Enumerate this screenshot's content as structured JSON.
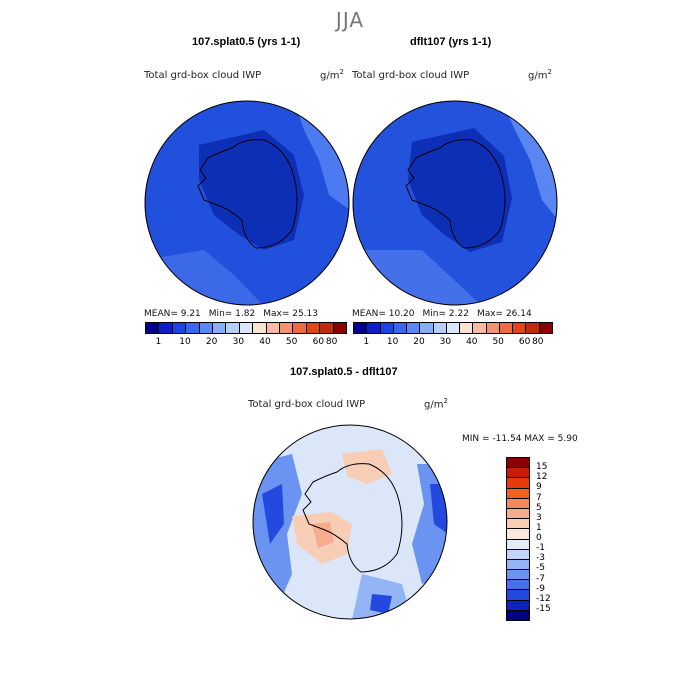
{
  "season": "JJA",
  "panel1": {
    "title": "107.splat0.5 (yrs 1-1)",
    "var_label": "Total grd-box cloud IWP",
    "unit": "g/m",
    "unit_exp": "2",
    "mean": "MEAN=   9.21",
    "min": "Min=   1.82",
    "max": "Max=  25.13"
  },
  "panel2": {
    "title": "dflt107 (yrs 1-1)",
    "var_label": "Total grd-box cloud IWP",
    "unit": "g/m",
    "unit_exp": "2",
    "mean": "MEAN=  10.20",
    "min": "Min=   2.22",
    "max": "Max=  26.14"
  },
  "panel3": {
    "title": "107.splat0.5 - dflt107",
    "var_label": "Total grd-box cloud IWP",
    "unit": "g/m",
    "unit_exp": "2",
    "minmax": "MIN = -11.54  MAX =    5.90"
  },
  "colorbar_top": {
    "colors": [
      "#00008b",
      "#0a1fc8",
      "#1a46e6",
      "#3a67f0",
      "#5a88f5",
      "#86aef7",
      "#b5cff8",
      "#dbe6f8",
      "#fbe3d2",
      "#f7bca0",
      "#f39370",
      "#ee6a40",
      "#e44516",
      "#c12a0d",
      "#8b0000"
    ],
    "ticks": [
      "1",
      "10",
      "20",
      "30",
      "40",
      "50",
      "60",
      "80"
    ]
  },
  "colorbar_diff": {
    "colors": [
      "#8b0000",
      "#c71c06",
      "#e83b0b",
      "#f4601e",
      "#f6885a",
      "#f7ac8e",
      "#f8cdb5",
      "#fbe9de",
      "#e4ecfa",
      "#c1d5f8",
      "#93b4f6",
      "#6b93f2",
      "#4670ea",
      "#2349df",
      "#0d22c0",
      "#000080"
    ],
    "ticks": [
      "15",
      "12",
      "9",
      "7",
      "5",
      "3",
      "1",
      "0",
      "-1",
      "-3",
      "-5",
      "-7",
      "-9",
      "-12",
      "-15"
    ]
  },
  "maps": {
    "map1": {
      "base": "#2150dc",
      "dark": "#0d2fb6",
      "light": "#4d7af0"
    },
    "map2": {
      "base": "#2352dd",
      "dark": "#0d2fb6",
      "light": "#5a86f2"
    }
  }
}
